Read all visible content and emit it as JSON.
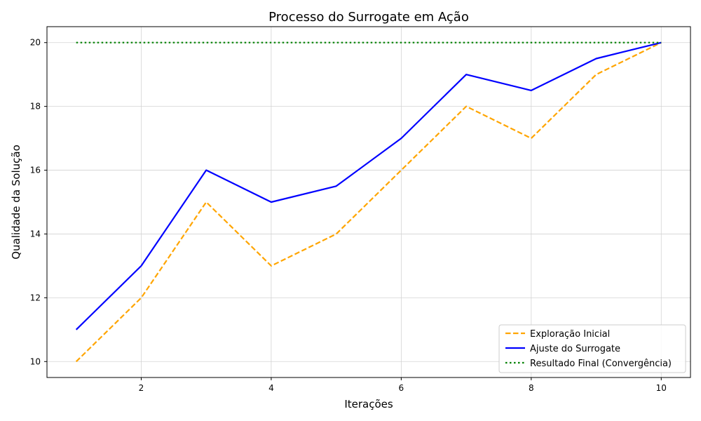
{
  "chart_data": {
    "type": "line",
    "title": "Processo do Surrogate em Ação",
    "xlabel": "Iterações",
    "ylabel": "Qualidade da Solução",
    "x": [
      1,
      2,
      3,
      4,
      5,
      6,
      7,
      8,
      9,
      10
    ],
    "xlim": [
      0.55,
      10.45
    ],
    "ylim": [
      9.5,
      20.5
    ],
    "xticks": [
      2,
      4,
      6,
      8,
      10
    ],
    "yticks": [
      10,
      12,
      14,
      16,
      18,
      20
    ],
    "grid": true,
    "legend_position": "bottom-right",
    "series": [
      {
        "name": "Exploração Inicial",
        "values": [
          10,
          12,
          15,
          13,
          14,
          16,
          18,
          17,
          19,
          20
        ],
        "color": "#ffa500",
        "style": "dashed"
      },
      {
        "name": "Ajuste do Surrogate",
        "values": [
          11,
          13,
          16,
          15,
          15.5,
          17,
          19,
          18.5,
          19.5,
          20
        ],
        "color": "#0000ff",
        "style": "solid"
      },
      {
        "name": "Resultado Final (Convergência)",
        "values": [
          20,
          20,
          20,
          20,
          20,
          20,
          20,
          20,
          20,
          20
        ],
        "color": "#008000",
        "style": "dotted"
      }
    ]
  }
}
